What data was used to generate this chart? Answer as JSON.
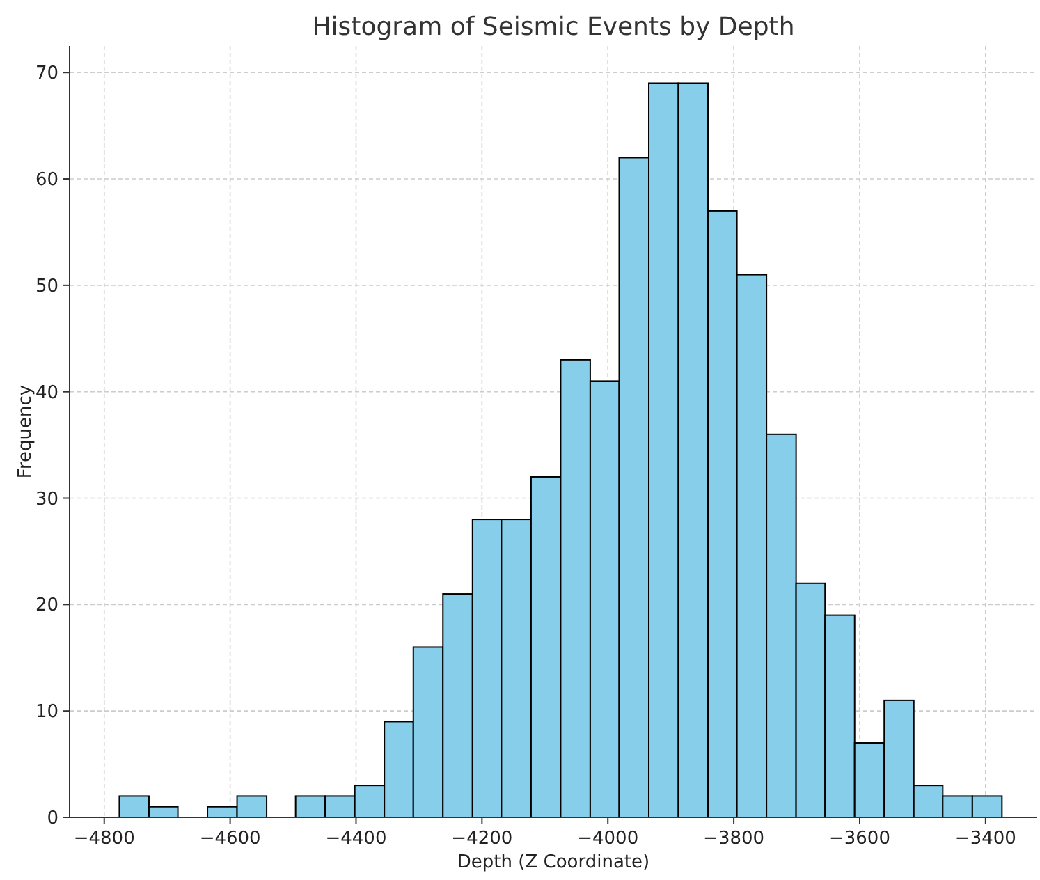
{
  "chart_data": {
    "type": "histogram",
    "title": "Histogram of Seismic Events by Depth",
    "xlabel": "Depth (Z Coordinate)",
    "ylabel": "Frequency",
    "bins": [
      -4776,
      -4729,
      -4683,
      -4636,
      -4589,
      -4542,
      -4496,
      -4449,
      -4402,
      -4355,
      -4309,
      -4262,
      -4215,
      -4169,
      -4122,
      -4075,
      -4028,
      -3982,
      -3935,
      -3888,
      -3841,
      -3795,
      -3748,
      -3701,
      -3655,
      -3608,
      -3561,
      -3514,
      -3468,
      -3421,
      -3374
    ],
    "values": [
      2,
      1,
      0,
      1,
      2,
      0,
      2,
      2,
      3,
      9,
      16,
      21,
      28,
      28,
      32,
      43,
      41,
      62,
      69,
      69,
      57,
      51,
      36,
      22,
      19,
      7,
      11,
      3,
      2,
      2
    ],
    "color": "#87ceeb",
    "xlim": [
      -4855,
      -3318
    ],
    "xticks": [
      {
        "value": -4800,
        "label": "−4800"
      },
      {
        "value": -4600,
        "label": "−4600"
      },
      {
        "value": -4400,
        "label": "−4400"
      },
      {
        "value": -4200,
        "label": "−4200"
      },
      {
        "value": -4000,
        "label": "−4000"
      },
      {
        "value": -3800,
        "label": "−3800"
      },
      {
        "value": -3600,
        "label": "−3600"
      },
      {
        "value": -3400,
        "label": "−3400"
      }
    ],
    "ylim": [
      0,
      72.5
    ],
    "yticks": [
      0,
      10,
      20,
      30,
      40,
      50,
      60,
      70
    ],
    "grid": true
  }
}
